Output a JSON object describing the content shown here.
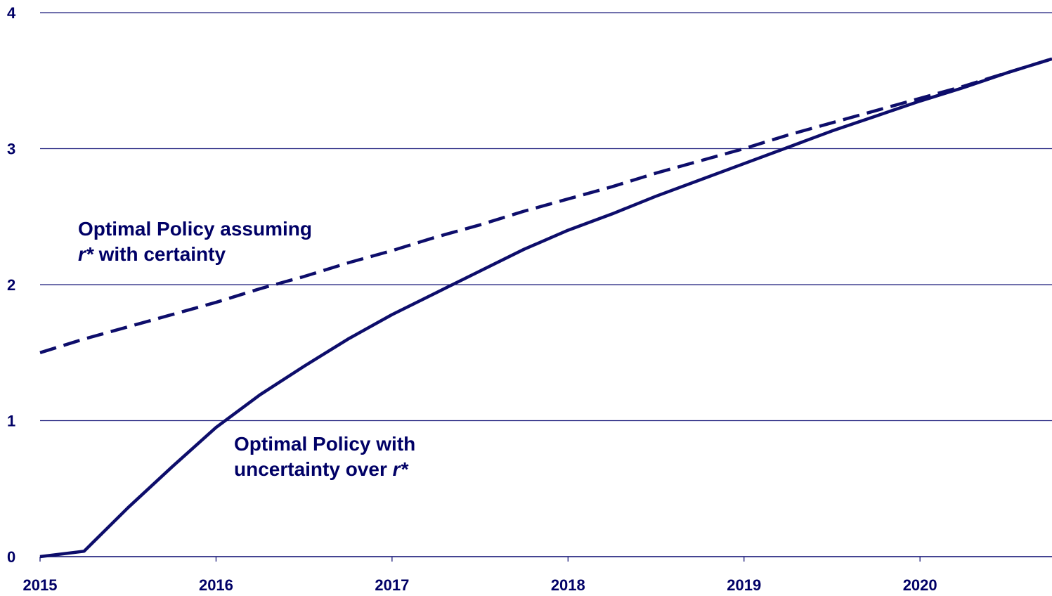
{
  "chart_data": {
    "type": "line",
    "title": "",
    "xlabel": "",
    "ylabel": "",
    "xlim": [
      2015.0,
      2020.75
    ],
    "ylim": [
      0,
      4
    ],
    "x_ticks": [
      "2015",
      "2016",
      "2017",
      "2018",
      "2019",
      "2020"
    ],
    "y_ticks": [
      "0",
      "1",
      "2",
      "3",
      "4"
    ],
    "grid": "horizontal",
    "colors": {
      "line": "#0d0d6b",
      "grid": "#1a1a7a",
      "text": "#000066"
    },
    "series": [
      {
        "style": "solid",
        "x": [
          2015.0,
          2015.25,
          2015.5,
          2015.75,
          2016.0,
          2016.25,
          2016.5,
          2016.75,
          2017.0,
          2017.25,
          2017.5,
          2017.75,
          2018.0,
          2018.25,
          2018.5,
          2018.75,
          2019.0,
          2019.25,
          2019.5,
          2019.75,
          2020.0,
          2020.25,
          2020.5,
          2020.75
        ],
        "values": [
          0.0,
          0.04,
          0.36,
          0.66,
          0.95,
          1.19,
          1.4,
          1.6,
          1.78,
          1.94,
          2.1,
          2.26,
          2.4,
          2.52,
          2.65,
          2.77,
          2.89,
          3.01,
          3.13,
          3.24,
          3.35,
          3.45,
          3.56,
          3.66
        ]
      },
      {
        "style": "dashed",
        "x": [
          2015.0,
          2015.25,
          2015.5,
          2015.75,
          2016.0,
          2016.25,
          2016.5,
          2016.75,
          2017.0,
          2017.25,
          2017.5,
          2017.75,
          2018.0,
          2018.25,
          2018.5,
          2018.75,
          2019.0,
          2019.25,
          2019.5,
          2019.75,
          2020.0,
          2020.25,
          2020.5,
          2020.75
        ],
        "values": [
          1.5,
          1.6,
          1.69,
          1.78,
          1.87,
          1.97,
          2.06,
          2.16,
          2.25,
          2.35,
          2.44,
          2.54,
          2.63,
          2.72,
          2.82,
          2.91,
          3.0,
          3.1,
          3.19,
          3.28,
          3.37,
          3.46,
          3.56,
          3.66
        ]
      }
    ],
    "annotations": {
      "dashed_label_line1": "Optimal Policy assuming",
      "dashed_label_line2_var": "r*",
      "dashed_label_line2_rest": " with certainty",
      "solid_label_line1": "Optimal Policy with",
      "solid_label_line2_text": "uncertainty over ",
      "solid_label_line2_var": "r*"
    }
  }
}
